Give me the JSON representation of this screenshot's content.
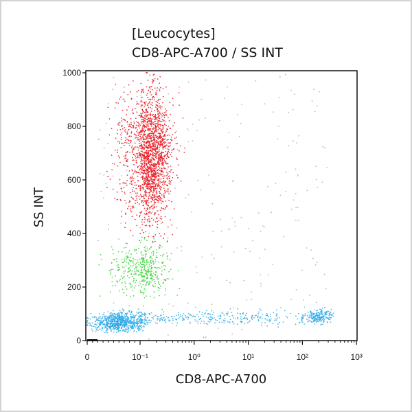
{
  "chart_data": {
    "type": "scatter",
    "title": "[Leucocytes]",
    "subtitle": "CD8-APC-A700 / SS INT",
    "xlabel": "CD8-APC-A700",
    "ylabel": "SS INT",
    "x_scale": "log (with linear region near 0)",
    "xlim": [
      0,
      1000
    ],
    "ylim": [
      0,
      1000
    ],
    "x_ticks": [
      0,
      0.1,
      1,
      10,
      100,
      1000
    ],
    "x_tick_labels": [
      "0",
      "10⁻¹",
      "10⁰",
      "10¹",
      "10²",
      "10³"
    ],
    "y_ticks": [
      0,
      200,
      400,
      600,
      800,
      1000
    ],
    "y_tick_labels": [
      "0",
      "200",
      "400",
      "600",
      "800",
      "1000"
    ],
    "grid": false,
    "legend": "none",
    "populations": [
      {
        "color": "#e8141c",
        "x_center": 0.15,
        "x_spread_decades": 0.2,
        "y_center": 690,
        "y_spread": 130,
        "y_range": [
          370,
          1000
        ]
      },
      {
        "color": "#2ed12e",
        "x_center": 0.12,
        "x_spread_decades": 0.22,
        "y_center": 265,
        "y_spread": 50,
        "y_range": [
          160,
          380
        ]
      },
      {
        "color": "#2aa8e6",
        "x_center": 0.06,
        "x_spread_linear": 0.025,
        "y_center": 70,
        "y_spread": 18,
        "y_range": [
          30,
          140
        ]
      },
      {
        "color": "#2aa8e6",
        "x_range": [
          0.1,
          300
        ],
        "y_center": 85,
        "y_spread": 14,
        "y_range": [
          40,
          140
        ]
      },
      {
        "color": "#2aa8e6",
        "x_center": 200,
        "x_spread_decades": 0.12,
        "y_center": 90,
        "y_spread": 14,
        "y_range": [
          50,
          140
        ]
      },
      {
        "color": "#a9a9b8",
        "x_range": [
          0.02,
          300
        ],
        "y_range": [
          0,
          1000
        ]
      }
    ]
  }
}
